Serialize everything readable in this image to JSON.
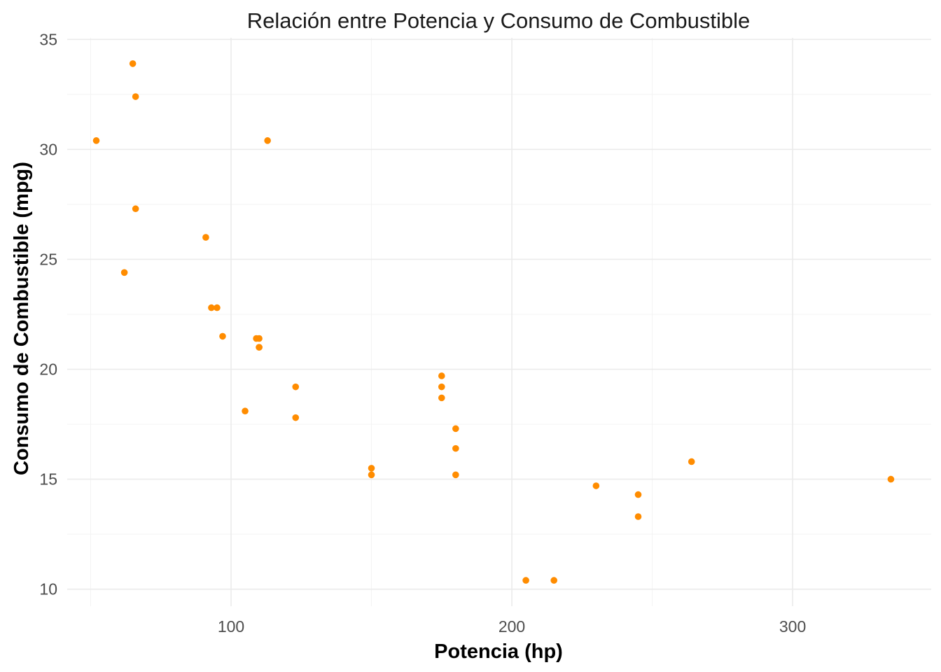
{
  "chart_data": {
    "type": "scatter",
    "title": "Relación entre Potencia y Consumo de Combustible",
    "xlabel": "Potencia (hp)",
    "ylabel": "Consumo de Combustible (mpg)",
    "xlim": [
      41.65,
      349.35
    ],
    "ylim": [
      9.225,
      35.075
    ],
    "x_ticks": [
      100,
      200,
      300
    ],
    "y_ticks": [
      10,
      15,
      20,
      25,
      30,
      35
    ],
    "x_minor_ticks": [
      50,
      150,
      250
    ],
    "y_minor_ticks": [
      12.5,
      17.5,
      22.5,
      27.5,
      32.5
    ],
    "grid": true,
    "legend": "none",
    "point_color": "#FF8C00",
    "points": [
      {
        "x": 110,
        "y": 21.0
      },
      {
        "x": 110,
        "y": 21.0
      },
      {
        "x": 93,
        "y": 22.8
      },
      {
        "x": 110,
        "y": 21.4
      },
      {
        "x": 175,
        "y": 18.7
      },
      {
        "x": 105,
        "y": 18.1
      },
      {
        "x": 245,
        "y": 14.3
      },
      {
        "x": 62,
        "y": 24.4
      },
      {
        "x": 95,
        "y": 22.8
      },
      {
        "x": 123,
        "y": 19.2
      },
      {
        "x": 123,
        "y": 17.8
      },
      {
        "x": 180,
        "y": 16.4
      },
      {
        "x": 180,
        "y": 17.3
      },
      {
        "x": 180,
        "y": 15.2
      },
      {
        "x": 205,
        "y": 10.4
      },
      {
        "x": 215,
        "y": 10.4
      },
      {
        "x": 230,
        "y": 14.7
      },
      {
        "x": 66,
        "y": 32.4
      },
      {
        "x": 52,
        "y": 30.4
      },
      {
        "x": 65,
        "y": 33.9
      },
      {
        "x": 97,
        "y": 21.5
      },
      {
        "x": 150,
        "y": 15.5
      },
      {
        "x": 150,
        "y": 15.2
      },
      {
        "x": 245,
        "y": 13.3
      },
      {
        "x": 175,
        "y": 19.2
      },
      {
        "x": 66,
        "y": 27.3
      },
      {
        "x": 91,
        "y": 26.0
      },
      {
        "x": 113,
        "y": 30.4
      },
      {
        "x": 264,
        "y": 15.8
      },
      {
        "x": 175,
        "y": 19.7
      },
      {
        "x": 335,
        "y": 15.0
      },
      {
        "x": 109,
        "y": 21.4
      }
    ]
  }
}
